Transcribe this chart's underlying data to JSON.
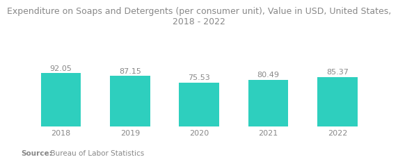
{
  "title": "Expenditure on Soaps and Detergents (per consumer unit), Value in USD, United States,\n2018 - 2022",
  "categories": [
    "2018",
    "2019",
    "2020",
    "2021",
    "2022"
  ],
  "values": [
    92.05,
    87.15,
    75.53,
    80.49,
    85.37
  ],
  "bar_color": "#2ECFBE",
  "background_color": "#ffffff",
  "source_bold": "Source:",
  "source_normal": "  Bureau of Labor Statistics",
  "title_fontsize": 9.0,
  "label_fontsize": 8.0,
  "source_fontsize": 7.5,
  "ylim": [
    0,
    160
  ],
  "bar_width": 0.58
}
